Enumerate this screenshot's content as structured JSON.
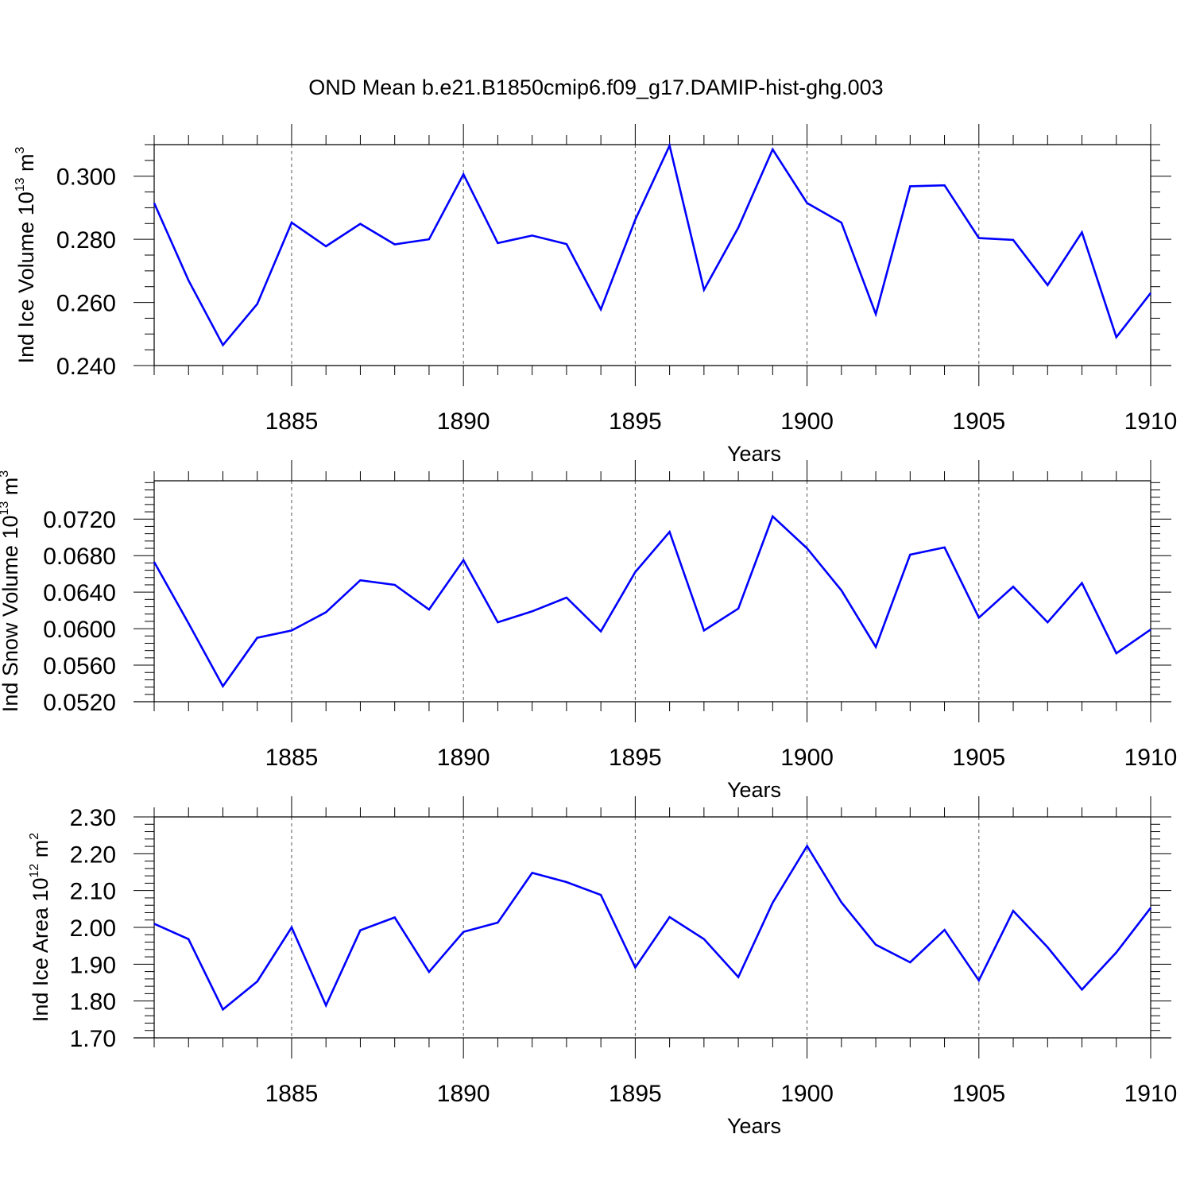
{
  "title": "OND Mean b.e21.B1850cmip6.f09_g17.DAMIP-hist-ghg.003",
  "chart_data": [
    {
      "type": "line",
      "xlabel": "Years",
      "ylabel_main": "Ind Ice Volume 10",
      "ylabel_exp": "13",
      "ylabel_unit": "m",
      "ylabel_unit_exp": "3",
      "xlim": [
        1881,
        1910
      ],
      "ylim": [
        0.24,
        0.31
      ],
      "yticks": [
        0.24,
        0.26,
        0.28,
        0.3
      ],
      "yticklabels": [
        "0.240",
        "0.260",
        "0.280",
        "0.300"
      ],
      "yminor_step": 0.005,
      "xticks": [
        1885,
        1890,
        1895,
        1900,
        1905,
        1910
      ],
      "xticklabels": [
        "1885",
        "1890",
        "1895",
        "1900",
        "1905",
        "1910"
      ],
      "grid_x": [
        1885,
        1890,
        1895,
        1900,
        1905
      ],
      "line_color": "#0000ff",
      "series": [
        {
          "name": "Ind Ice Volume",
          "x": [
            1881,
            1882,
            1883,
            1884,
            1885,
            1886,
            1887,
            1888,
            1889,
            1890,
            1891,
            1892,
            1893,
            1894,
            1895,
            1896,
            1897,
            1898,
            1899,
            1900,
            1901,
            1902,
            1903,
            1904,
            1905,
            1906,
            1907,
            1908,
            1909,
            1910
          ],
          "values": [
            0.2915,
            0.267,
            0.2465,
            0.2595,
            0.2853,
            0.2778,
            0.2849,
            0.2784,
            0.28,
            0.3006,
            0.2788,
            0.2812,
            0.2785,
            0.2578,
            0.2862,
            0.3097,
            0.264,
            0.2837,
            0.3085,
            0.2915,
            0.2853,
            0.2563,
            0.2968,
            0.2971,
            0.2804,
            0.2798,
            0.2655,
            0.2822,
            0.249,
            0.263
          ]
        }
      ]
    },
    {
      "type": "line",
      "xlabel": "Years",
      "ylabel_main": "Ind Snow Volume 10",
      "ylabel_exp": "13",
      "ylabel_unit": "m",
      "ylabel_unit_exp": "3",
      "xlim": [
        1881,
        1910
      ],
      "ylim": [
        0.052,
        0.0762
      ],
      "yticks": [
        0.052,
        0.056,
        0.06,
        0.064,
        0.068,
        0.072
      ],
      "yticklabels": [
        "0.0520",
        "0.0560",
        "0.0600",
        "0.0640",
        "0.0680",
        "0.0720"
      ],
      "yminor_step": 0.0008,
      "xticks": [
        1885,
        1890,
        1895,
        1900,
        1905,
        1910
      ],
      "xticklabels": [
        "1885",
        "1890",
        "1895",
        "1900",
        "1905",
        "1910"
      ],
      "grid_x": [
        1885,
        1890,
        1895,
        1900,
        1905
      ],
      "line_color": "#0000ff",
      "series": [
        {
          "name": "Ind Snow Volume",
          "x": [
            1881,
            1882,
            1883,
            1884,
            1885,
            1886,
            1887,
            1888,
            1889,
            1890,
            1891,
            1892,
            1893,
            1894,
            1895,
            1896,
            1897,
            1898,
            1899,
            1900,
            1901,
            1902,
            1903,
            1904,
            1905,
            1906,
            1907,
            1908,
            1909,
            1910
          ],
          "values": [
            0.0673,
            0.0606,
            0.0537,
            0.059,
            0.0598,
            0.0618,
            0.0653,
            0.0648,
            0.0621,
            0.0675,
            0.0607,
            0.0619,
            0.0634,
            0.0597,
            0.0662,
            0.0706,
            0.0598,
            0.0622,
            0.0723,
            0.0688,
            0.0642,
            0.058,
            0.0681,
            0.0689,
            0.0612,
            0.0646,
            0.0607,
            0.065,
            0.0573,
            0.0599
          ]
        }
      ]
    },
    {
      "type": "line",
      "xlabel": "Years",
      "ylabel_main": "Ind Ice Area 10",
      "ylabel_exp": "12",
      "ylabel_unit": "m",
      "ylabel_unit_exp": "2",
      "xlim": [
        1881,
        1910
      ],
      "ylim": [
        1.7,
        2.3
      ],
      "yticks": [
        1.7,
        1.8,
        1.9,
        2.0,
        2.1,
        2.2,
        2.3
      ],
      "yticklabels": [
        "1.70",
        "1.80",
        "1.90",
        "2.00",
        "2.10",
        "2.20",
        "2.30"
      ],
      "yminor_step": 0.02,
      "xticks": [
        1885,
        1890,
        1895,
        1900,
        1905,
        1910
      ],
      "xticklabels": [
        "1885",
        "1890",
        "1895",
        "1900",
        "1905",
        "1910"
      ],
      "grid_x": [
        1885,
        1890,
        1895,
        1900,
        1905
      ],
      "line_color": "#0000ff",
      "series": [
        {
          "name": "Ind Ice Area",
          "x": [
            1881,
            1882,
            1883,
            1884,
            1885,
            1886,
            1887,
            1888,
            1889,
            1890,
            1891,
            1892,
            1893,
            1894,
            1895,
            1896,
            1897,
            1898,
            1899,
            1900,
            1901,
            1902,
            1903,
            1904,
            1905,
            1906,
            1907,
            1908,
            1909,
            1910
          ],
          "values": [
            2.01,
            1.968,
            1.777,
            1.853,
            2.0,
            1.788,
            1.992,
            2.027,
            1.879,
            1.988,
            2.013,
            2.148,
            2.123,
            2.088,
            1.891,
            2.028,
            1.968,
            1.865,
            2.067,
            2.221,
            2.068,
            1.953,
            1.905,
            1.993,
            1.856,
            2.045,
            1.946,
            1.831,
            1.932,
            2.053
          ]
        }
      ]
    }
  ]
}
